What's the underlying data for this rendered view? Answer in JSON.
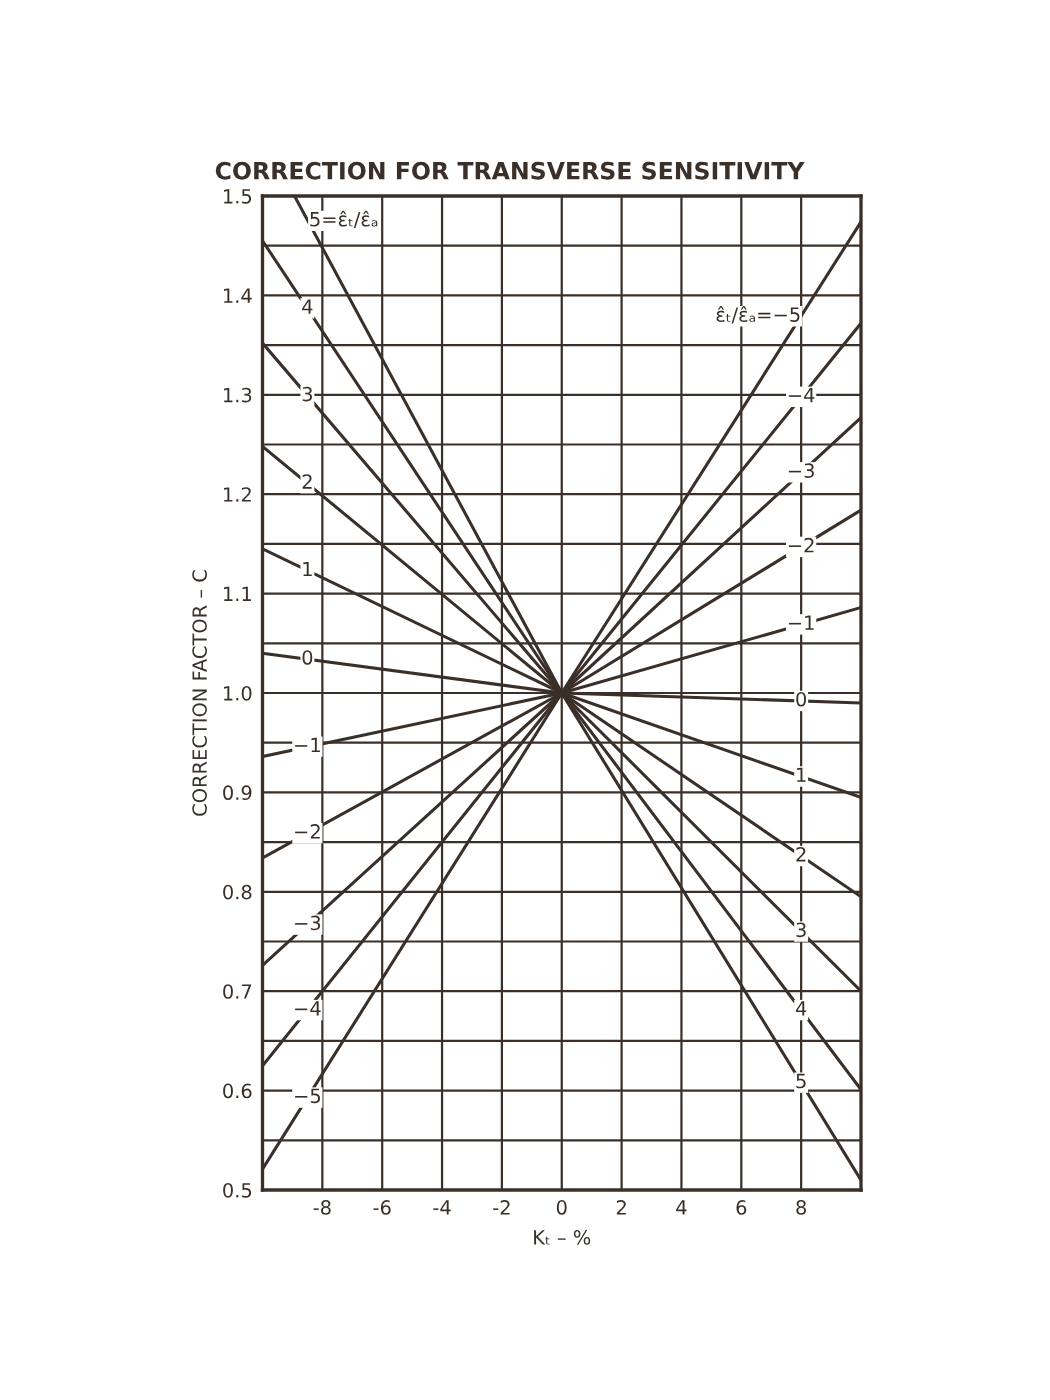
{
  "chart_data": {
    "type": "line",
    "title": "CORRECTION FOR TRANSVERSE SENSITIVITY",
    "xlabel": "Kₜ – %",
    "ylabel": "CORRECTION FACTOR – C",
    "xlim": [
      -10,
      10
    ],
    "xticks": [
      -8,
      -6,
      -4,
      -2,
      0,
      2,
      4,
      6,
      8
    ],
    "ylim": [
      0.5,
      1.5
    ],
    "yticks": [
      0.5,
      {
        "value": 0.55,
        "label": null
      },
      0.6,
      {
        "value": 0.65,
        "label": null
      },
      0.7,
      {
        "value": 0.75,
        "label": null
      },
      0.8,
      {
        "value": 0.85,
        "label": null
      },
      0.9,
      {
        "value": 0.95,
        "label": null
      },
      {
        "value": 1.0,
        "label": "1.0"
      },
      {
        "value": 1.05,
        "label": null
      },
      1.1,
      {
        "value": 1.15,
        "label": null
      },
      1.2,
      {
        "value": 1.25,
        "label": null
      },
      1.3,
      {
        "value": 1.35,
        "label": null
      },
      1.4,
      {
        "value": 1.45,
        "label": null
      },
      1.5
    ],
    "grid": true,
    "marker": "none",
    "line_style": "solid",
    "series": [
      {
        "color": "#3a3029",
        "x": [
          -8.93,
          0,
          10
        ],
        "values": [
          1.5,
          1,
          0.51
        ]
      },
      {
        "color": "#3a3029",
        "x": [
          -10,
          0,
          10
        ],
        "values": [
          1.455,
          1,
          0.601
        ]
      },
      {
        "color": "#3a3029",
        "x": [
          -10,
          0,
          10
        ],
        "values": [
          1.352,
          1,
          0.7
        ]
      },
      {
        "color": "#3a3029",
        "x": [
          -10,
          0,
          10
        ],
        "values": [
          1.248,
          1,
          0.795
        ]
      },
      {
        "color": "#3a3029",
        "x": [
          -10,
          0,
          10
        ],
        "values": [
          1.145,
          1,
          0.895
        ]
      },
      {
        "color": "#3a3029",
        "x": [
          -10,
          0,
          10
        ],
        "values": [
          1.04,
          1,
          0.99
        ]
      },
      {
        "color": "#3a3029",
        "x": [
          -10,
          0,
          10
        ],
        "values": [
          0.936,
          1,
          1.086
        ]
      },
      {
        "color": "#3a3029",
        "x": [
          -10,
          0,
          10
        ],
        "values": [
          0.834,
          1,
          1.184
        ]
      },
      {
        "color": "#3a3029",
        "x": [
          -10,
          0,
          10
        ],
        "values": [
          0.726,
          1,
          1.277
        ]
      },
      {
        "color": "#3a3029",
        "x": [
          -10,
          0,
          10
        ],
        "values": [
          0.625,
          1,
          1.372
        ]
      },
      {
        "color": "#3a3029",
        "x": [
          -10,
          0,
          10
        ],
        "values": [
          0.521,
          1,
          1.474
        ]
      }
    ],
    "annotations": [
      {
        "text": "5=ε̂ₜ/ε̂ₐ",
        "x": -8.45,
        "y": 1.475
      },
      {
        "text": "4",
        "x": -8.5,
        "y": 1.387
      },
      {
        "text": "3",
        "x": -8.5,
        "y": 1.299
      },
      {
        "text": "2",
        "x": -8.5,
        "y": 1.211
      },
      {
        "text": "1",
        "x": -8.5,
        "y": 1.123
      },
      {
        "text": "0",
        "x": -8.5,
        "y": 1.034
      },
      {
        "text": "−1",
        "x": -8.5,
        "y": 0.946
      },
      {
        "text": "−2",
        "x": -8.5,
        "y": 0.859
      },
      {
        "text": "−3",
        "x": -8.5,
        "y": 0.767
      },
      {
        "text": "−4",
        "x": -8.5,
        "y": 0.681
      },
      {
        "text": "−5",
        "x": -8.5,
        "y": 0.593
      },
      {
        "text": "5",
        "x": 8,
        "y": 0.608
      },
      {
        "text": "4",
        "x": 8,
        "y": 0.681
      },
      {
        "text": "3",
        "x": 8,
        "y": 0.76
      },
      {
        "text": "2",
        "x": 8,
        "y": 0.836
      },
      {
        "text": "1",
        "x": 8,
        "y": 0.916
      },
      {
        "text": "0",
        "x": 8,
        "y": 0.992
      },
      {
        "text": "−1",
        "x": 8,
        "y": 1.069
      },
      {
        "text": "−2",
        "x": 8,
        "y": 1.147
      },
      {
        "text": "−3",
        "x": 8,
        "y": 1.222
      },
      {
        "text": "−4",
        "x": 8,
        "y": 1.298
      },
      {
        "text": "ε̂ₜ/ε̂ₐ=−5",
        "x": 8,
        "y": 1.379
      }
    ]
  }
}
